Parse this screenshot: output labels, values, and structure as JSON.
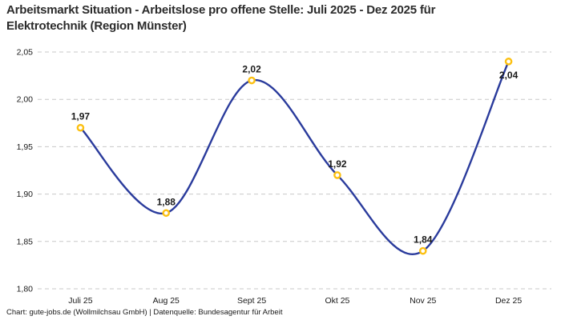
{
  "chart_data": {
    "type": "line",
    "title": "Arbeitsmarkt Situation - Arbeitslose pro offene Stelle: Juli 2025 - Dez 2025 für Elektrotechnik (Region Münster)",
    "categories": [
      "Juli 25",
      "Aug 25",
      "Sept 25",
      "Okt 25",
      "Nov 25",
      "Dez 25"
    ],
    "values": [
      1.97,
      1.88,
      2.02,
      1.92,
      1.84,
      2.04
    ],
    "point_labels": [
      "1,97",
      "1,88",
      "2,02",
      "1,92",
      "1,84",
      "2,04"
    ],
    "point_label_positions": [
      "above",
      "above",
      "above",
      "above",
      "above",
      "below"
    ],
    "xlabel": "",
    "ylabel": "",
    "ylim": [
      1.8,
      2.05
    ],
    "ytick_step": 0.05,
    "ytick_labels": [
      "1,80",
      "1,85",
      "1,90",
      "1,95",
      "2,00",
      "2,05"
    ],
    "grid": "horizontal-dashed",
    "legend": "none",
    "curve": "smooth-spline",
    "colors": {
      "line": "#2a3b9c",
      "marker_stroke": "#fcc011",
      "marker_fill": "#ffffff",
      "grid": "#c8c8c8",
      "title": "#2b2b2b",
      "axis_text": "#1a1a1a"
    }
  },
  "footer": {
    "credit": "Chart: gute-jobs.de (Wollmilchsau GmbH) | Datenquelle: Bundesagentur für Arbeit"
  }
}
